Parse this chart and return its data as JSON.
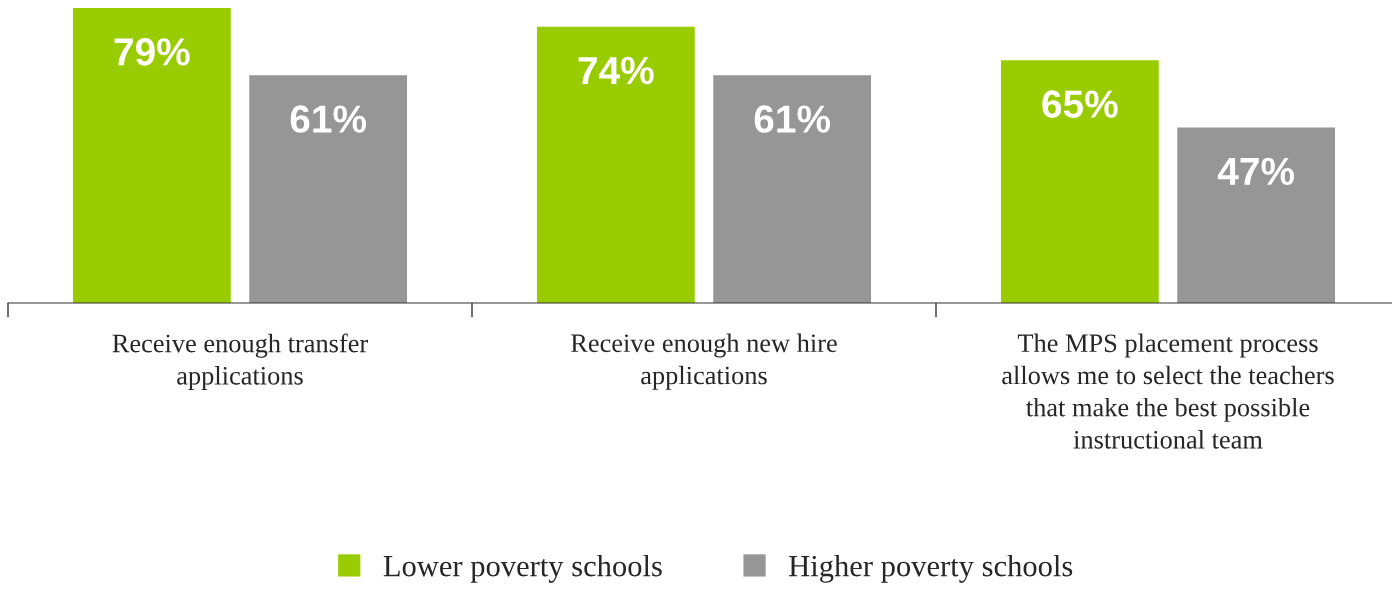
{
  "chart_data": {
    "type": "bar",
    "categories": [
      "Receive enough transfer\napplications",
      "Receive enough new hire\napplications",
      "The MPS placement process\nallows me to select the teachers\nthat make the best possible\ninstructional team"
    ],
    "series": [
      {
        "name": "Lower poverty schools",
        "color": "#99cc00",
        "values": [
          79,
          74,
          65
        ],
        "value_labels": [
          "79%",
          "74%",
          "65%"
        ]
      },
      {
        "name": "Higher poverty schools",
        "color": "#969696",
        "values": [
          61,
          61,
          47
        ],
        "value_labels": [
          "61%",
          "61%",
          "47%"
        ]
      }
    ],
    "legend": "bottom",
    "grid": false
  }
}
